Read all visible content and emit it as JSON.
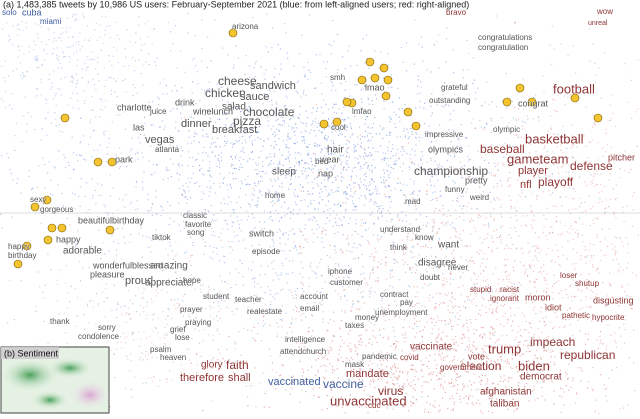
{
  "title": "(a) 1,483,385 tweets by 10,986 US users: February-September 2021 (blue: from left-aligned users; red: right-aligned)",
  "inset_label": "(b) Sentiment",
  "words": [
    "solo",
    "cuba",
    "miami",
    "arizona",
    "bravo",
    "wow",
    "unreal",
    "congratulations",
    "congratulation",
    "cheese",
    "sandwich",
    "chicken",
    "sauce",
    "drink",
    "winelunch",
    "salad",
    "chocolate",
    "juice",
    "dinner",
    "breakfast",
    "pizza",
    "charlotte",
    "las",
    "vegas",
    "atlanta",
    "park",
    "smh",
    "lmao",
    "lmfao",
    "cool",
    "hair",
    "wear",
    "grateful",
    "outstanding",
    "congrat",
    "football",
    "basketball",
    "impressive",
    "olympics",
    "olympic",
    "baseball",
    "gameteam",
    "player",
    "championship",
    "defense",
    "nfl",
    "playoff",
    "pitcher",
    "sleep",
    "nap",
    "bed",
    "home",
    "sexy",
    "gorgeous",
    "beautifulbirthday",
    "happy",
    "adorable",
    "happy",
    "birthday",
    "classic",
    "favorite",
    "song",
    "tiktok",
    "switch",
    "episode",
    "wonderfulblessed",
    "pleasure",
    "amazing",
    "proud",
    "appreciate",
    "hope",
    "student",
    "teacher",
    "realestate",
    "iphone",
    "customer",
    "account",
    "email",
    "pretty",
    "funny",
    "weird",
    "mad",
    "know",
    "understand",
    "think",
    "want",
    "never",
    "disagree",
    "doubt",
    "thank",
    "sorry",
    "condolence",
    "prayer",
    "praying",
    "grief",
    "lose",
    "psalm",
    "heaven",
    "glory",
    "faith",
    "therefore",
    "shall",
    "amen",
    "intelligence",
    "attendchurch",
    "money",
    "taxes",
    "unemployment",
    "pay",
    "contract",
    "vaccinated",
    "mandate",
    "mask",
    "vaccine",
    "virus",
    "unvaccinated",
    "cdc",
    "covid",
    "pandemic",
    "vaccinate",
    "trump",
    "impeach",
    "vote",
    "election",
    "biden",
    "republican",
    "democrat",
    "government",
    "afghanistan",
    "taliban",
    "stupid",
    "racist",
    "ignorant",
    "moron",
    "idiot",
    "loser",
    "shutup",
    "disgusting",
    "pathetic",
    "hypocrite"
  ]
}
